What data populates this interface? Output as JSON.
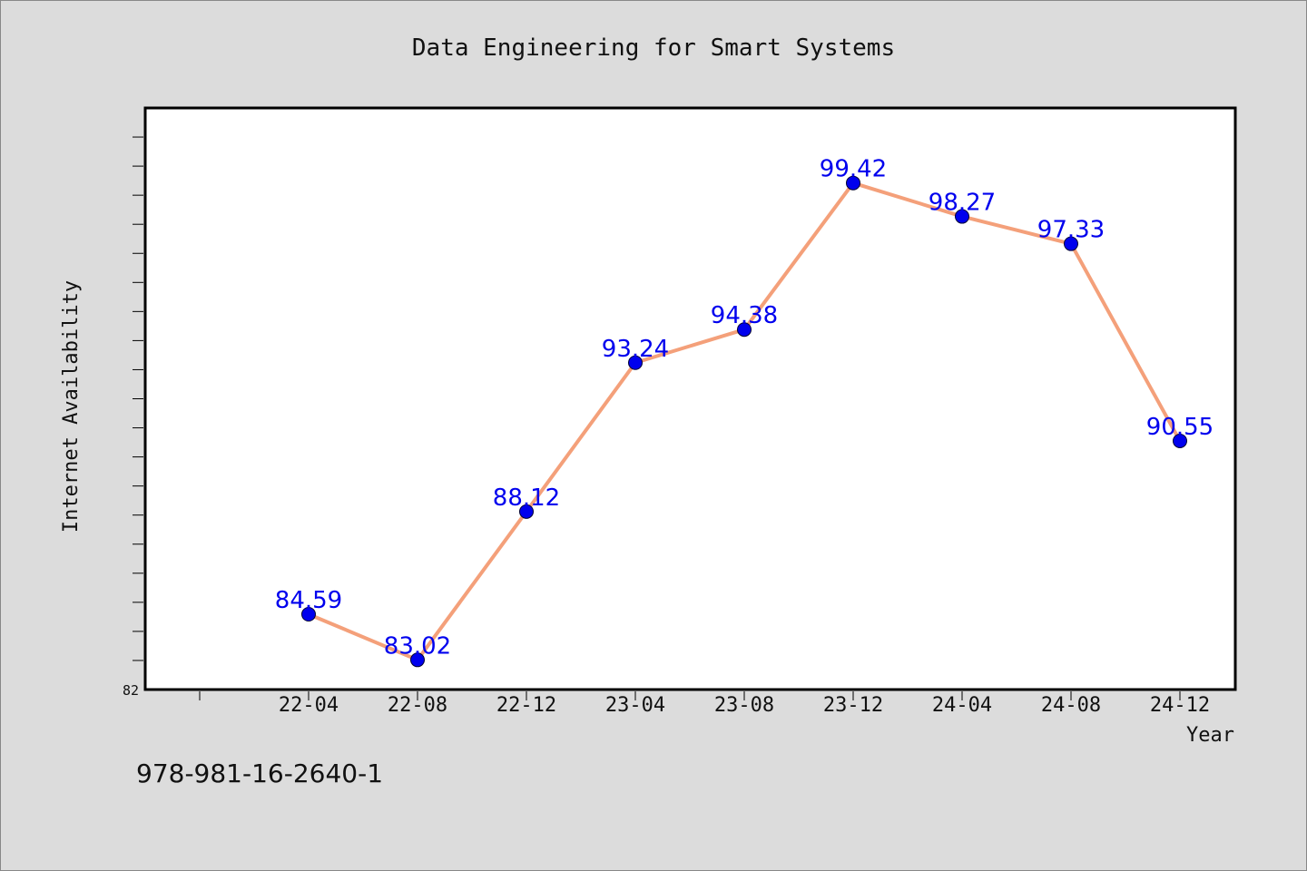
{
  "chart_data": {
    "type": "line",
    "title": "Data Engineering for Smart Systems",
    "xlabel": "Year",
    "ylabel": "Internet Availability",
    "categories": [
      "22-04",
      "22-08",
      "22-12",
      "23-04",
      "23-08",
      "23-12",
      "24-04",
      "24-08",
      "24-12"
    ],
    "values": [
      84.59,
      83.02,
      88.12,
      93.24,
      94.38,
      99.42,
      98.27,
      97.33,
      90.55
    ],
    "value_labels": [
      "84.59",
      "83.02",
      "88.12",
      "93.24",
      "94.38",
      "99.42",
      "98.27",
      "97.33",
      "90.55"
    ],
    "ylim": [
      82,
      102
    ],
    "y_tick_labels": [
      "82"
    ],
    "grid": false,
    "legend": "none",
    "line_color": "#f4a07a",
    "marker_color": "#0000ee"
  },
  "footer_text": "978-981-16-2640-1"
}
